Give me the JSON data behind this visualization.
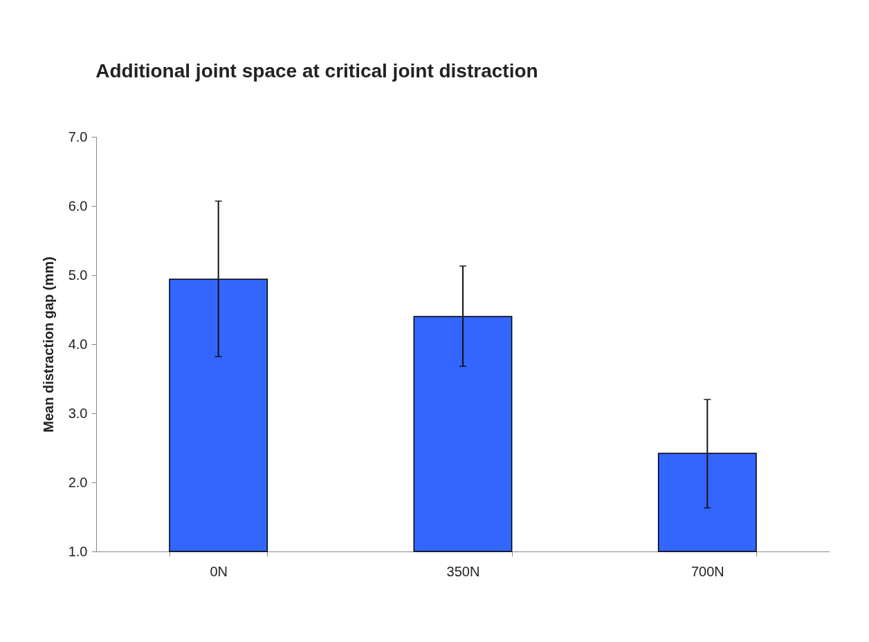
{
  "chart_data": {
    "type": "bar",
    "title": "Additional joint space at critical joint distraction",
    "ylabel": "Mean distraction gap (mm)",
    "categories": [
      "0N",
      "350N",
      "700N"
    ],
    "values": [
      4.94,
      4.4,
      2.42
    ],
    "color": "#3366ff",
    "errors": [
      [
        3.82,
        6.07
      ],
      [
        3.68,
        5.13
      ],
      [
        1.63,
        3.2
      ]
    ],
    "ylim": [
      1,
      7
    ],
    "yticks": [
      {
        "value": 1,
        "label": "1.0"
      },
      {
        "value": 2,
        "label": "2.0"
      },
      {
        "value": 3,
        "label": "3.0"
      },
      {
        "value": 4,
        "label": "4.0"
      },
      {
        "value": 5,
        "label": "5.0"
      },
      {
        "value": 6,
        "label": "6.0"
      },
      {
        "value": 7,
        "label": "7.0"
      }
    ],
    "grid": false
  }
}
